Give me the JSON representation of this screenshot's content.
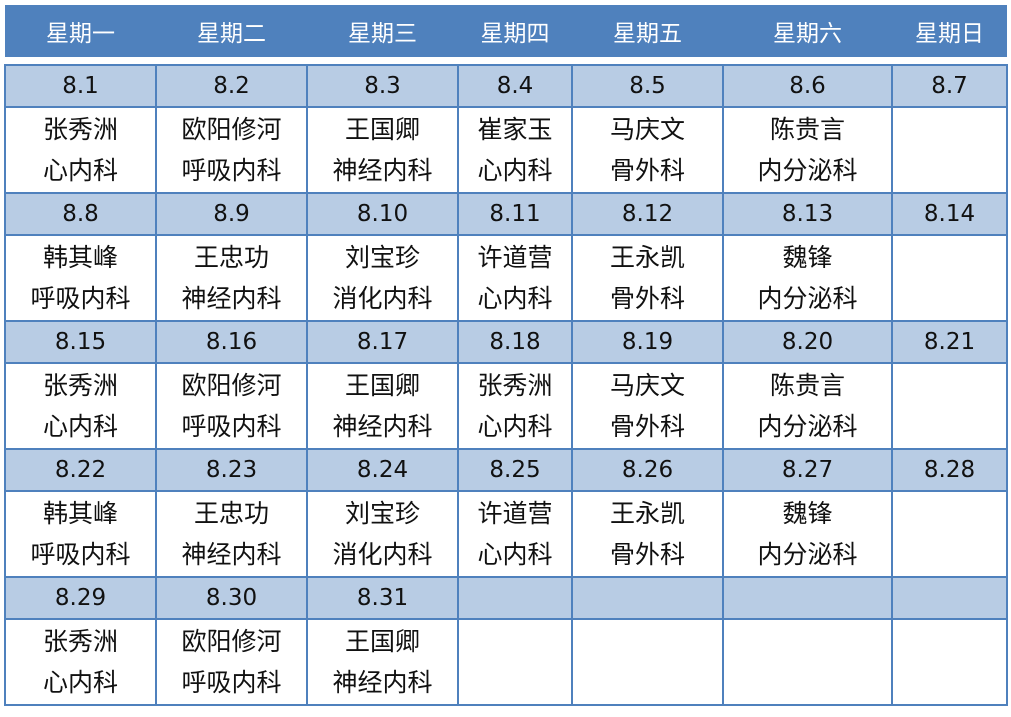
{
  "header": [
    "星期一",
    "星期二",
    "星期三",
    "星期四",
    "星期五",
    "星期六",
    "星期日"
  ],
  "colors": {
    "header_bg": "#4f81bd",
    "date_bg": "#b8cce4",
    "border": "#4f81bd"
  },
  "weeks": [
    {
      "dates": [
        "8.1",
        "8.2",
        "8.3",
        "8.4",
        "8.5",
        "8.6",
        "8.7"
      ],
      "cells": [
        {
          "name": "张秀洲",
          "dept": "心内科"
        },
        {
          "name": "欧阳修河",
          "dept": "呼吸内科"
        },
        {
          "name": "王国卿",
          "dept": "神经内科"
        },
        {
          "name": "崔家玉",
          "dept": "心内科"
        },
        {
          "name": "马庆文",
          "dept": "骨外科"
        },
        {
          "name": "陈贵言",
          "dept": "内分泌科"
        },
        {
          "name": "",
          "dept": ""
        }
      ]
    },
    {
      "dates": [
        "8.8",
        "8.9",
        "8.10",
        "8.11",
        "8.12",
        "8.13",
        "8.14"
      ],
      "cells": [
        {
          "name": "韩其峰",
          "dept": "呼吸内科"
        },
        {
          "name": "王忠功",
          "dept": "神经内科"
        },
        {
          "name": "刘宝珍",
          "dept": "消化内科"
        },
        {
          "name": "许道营",
          "dept": "心内科"
        },
        {
          "name": "王永凯",
          "dept": "骨外科"
        },
        {
          "name": "魏锋",
          "dept": "内分泌科"
        },
        {
          "name": "",
          "dept": ""
        }
      ]
    },
    {
      "dates": [
        "8.15",
        "8.16",
        "8.17",
        "8.18",
        "8.19",
        "8.20",
        "8.21"
      ],
      "cells": [
        {
          "name": "张秀洲",
          "dept": "心内科"
        },
        {
          "name": "欧阳修河",
          "dept": "呼吸内科"
        },
        {
          "name": "王国卿",
          "dept": "神经内科"
        },
        {
          "name": "张秀洲",
          "dept": "心内科"
        },
        {
          "name": "马庆文",
          "dept": "骨外科"
        },
        {
          "name": "陈贵言",
          "dept": "内分泌科"
        },
        {
          "name": "",
          "dept": ""
        }
      ]
    },
    {
      "dates": [
        "8.22",
        "8.23",
        "8.24",
        "8.25",
        "8.26",
        "8.27",
        "8.28"
      ],
      "cells": [
        {
          "name": "韩其峰",
          "dept": "呼吸内科"
        },
        {
          "name": "王忠功",
          "dept": "神经内科"
        },
        {
          "name": "刘宝珍",
          "dept": "消化内科"
        },
        {
          "name": "许道营",
          "dept": "心内科"
        },
        {
          "name": "王永凯",
          "dept": "骨外科"
        },
        {
          "name": "魏锋",
          "dept": "内分泌科"
        },
        {
          "name": "",
          "dept": ""
        }
      ]
    },
    {
      "dates": [
        "8.29",
        "8.30",
        "8.31",
        "",
        "",
        "",
        ""
      ],
      "cells": [
        {
          "name": "张秀洲",
          "dept": "心内科"
        },
        {
          "name": "欧阳修河",
          "dept": "呼吸内科"
        },
        {
          "name": "王国卿",
          "dept": "神经内科"
        },
        {
          "name": "",
          "dept": ""
        },
        {
          "name": "",
          "dept": ""
        },
        {
          "name": "",
          "dept": ""
        },
        {
          "name": "",
          "dept": ""
        }
      ]
    }
  ]
}
